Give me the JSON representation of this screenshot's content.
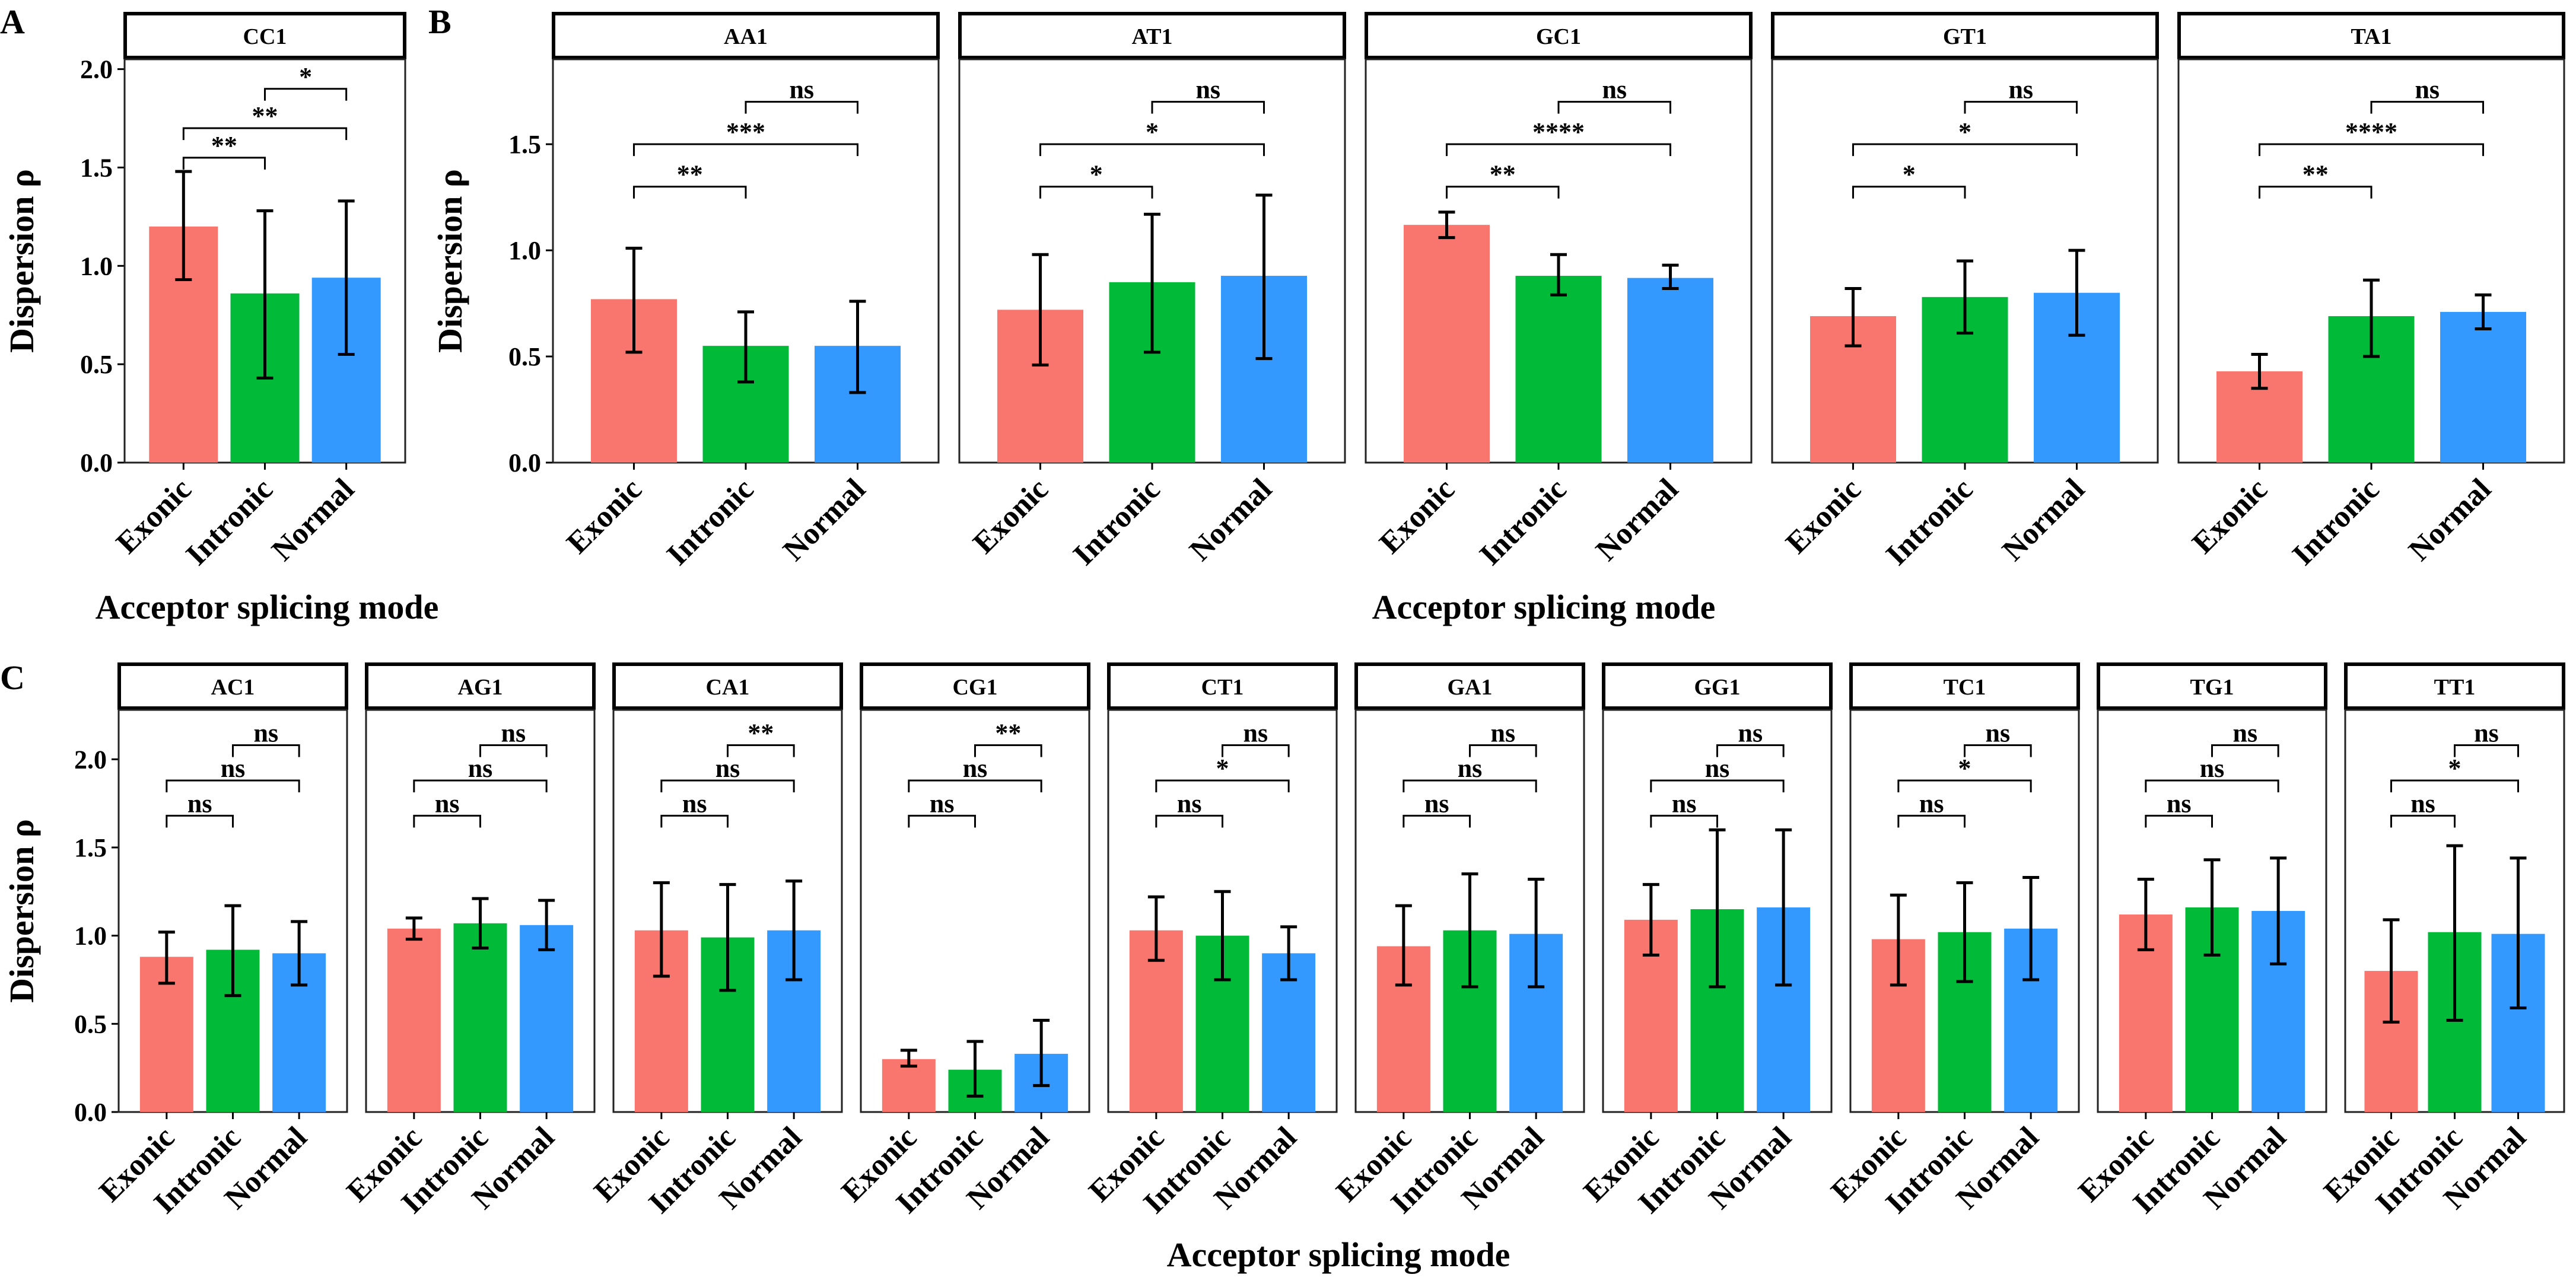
{
  "colors": {
    "Exonic": "#F8766D",
    "Intronic": "#00BA38",
    "Normal": "#3399FF"
  },
  "chart_data": [
    {
      "type": "bar",
      "panel": "A",
      "panel_id": "A",
      "x_title": "Acceptor splicing mode",
      "y_title": "Dispersion ρ",
      "ylim": [
        0,
        2.05
      ],
      "yticks": [
        0.0,
        0.5,
        1.0,
        1.5,
        2.0
      ],
      "ytick_labels": [
        "0.0",
        "0.5",
        "1.0",
        "1.5",
        "2.0"
      ],
      "categories": [
        "Exonic",
        "Intronic",
        "Normal"
      ],
      "facets": [
        {
          "strip": "CC1",
          "values": [
            1.2,
            0.86,
            0.94
          ],
          "err_low": [
            0.93,
            0.43,
            0.55
          ],
          "err_high": [
            1.48,
            1.28,
            1.33
          ],
          "comparisons": [
            {
              "from": 0,
              "to": 1,
              "label": "**",
              "y": 1.55
            },
            {
              "from": 0,
              "to": 2,
              "label": "**",
              "y": 1.7
            },
            {
              "from": 1,
              "to": 2,
              "label": "*",
              "y": 1.9
            }
          ]
        }
      ]
    },
    {
      "type": "bar",
      "panel": "B",
      "panel_id": "B",
      "x_title": "Acceptor splicing mode",
      "y_title": "Dispersion ρ",
      "ylim": [
        0,
        1.9
      ],
      "yticks": [
        0.0,
        0.5,
        1.0,
        1.5
      ],
      "ytick_labels": [
        "0.0",
        "0.5",
        "1.0",
        "1.5"
      ],
      "categories": [
        "Exonic",
        "Intronic",
        "Normal"
      ],
      "facets": [
        {
          "strip": "AA1",
          "values": [
            0.77,
            0.55,
            0.55
          ],
          "err_low": [
            0.52,
            0.38,
            0.33
          ],
          "err_high": [
            1.01,
            0.71,
            0.76
          ],
          "comparisons": [
            {
              "from": 0,
              "to": 1,
              "label": "**",
              "y": 1.3
            },
            {
              "from": 0,
              "to": 2,
              "label": "***",
              "y": 1.5
            },
            {
              "from": 1,
              "to": 2,
              "label": "ns",
              "y": 1.7
            }
          ]
        },
        {
          "strip": "AT1",
          "values": [
            0.72,
            0.85,
            0.88
          ],
          "err_low": [
            0.46,
            0.52,
            0.49
          ],
          "err_high": [
            0.98,
            1.17,
            1.26
          ],
          "comparisons": [
            {
              "from": 0,
              "to": 1,
              "label": "*",
              "y": 1.3
            },
            {
              "from": 0,
              "to": 2,
              "label": "*",
              "y": 1.5
            },
            {
              "from": 1,
              "to": 2,
              "label": "ns",
              "y": 1.7
            }
          ]
        },
        {
          "strip": "GC1",
          "values": [
            1.12,
            0.88,
            0.87
          ],
          "err_low": [
            1.06,
            0.79,
            0.82
          ],
          "err_high": [
            1.18,
            0.98,
            0.93
          ],
          "comparisons": [
            {
              "from": 0,
              "to": 1,
              "label": "**",
              "y": 1.3
            },
            {
              "from": 0,
              "to": 2,
              "label": "****",
              "y": 1.5
            },
            {
              "from": 1,
              "to": 2,
              "label": "ns",
              "y": 1.7
            }
          ]
        },
        {
          "strip": "GT1",
          "values": [
            0.69,
            0.78,
            0.8
          ],
          "err_low": [
            0.55,
            0.61,
            0.6
          ],
          "err_high": [
            0.82,
            0.95,
            1.0
          ],
          "comparisons": [
            {
              "from": 0,
              "to": 1,
              "label": "*",
              "y": 1.3
            },
            {
              "from": 0,
              "to": 2,
              "label": "*",
              "y": 1.5
            },
            {
              "from": 1,
              "to": 2,
              "label": "ns",
              "y": 1.7
            }
          ]
        },
        {
          "strip": "TA1",
          "values": [
            0.43,
            0.69,
            0.71
          ],
          "err_low": [
            0.35,
            0.5,
            0.63
          ],
          "err_high": [
            0.51,
            0.86,
            0.79
          ],
          "comparisons": [
            {
              "from": 0,
              "to": 1,
              "label": "**",
              "y": 1.3
            },
            {
              "from": 0,
              "to": 2,
              "label": "****",
              "y": 1.5
            },
            {
              "from": 1,
              "to": 2,
              "label": "ns",
              "y": 1.7
            }
          ]
        }
      ]
    },
    {
      "type": "bar",
      "panel": "C",
      "panel_id": "C",
      "x_title": "Acceptor splicing mode",
      "y_title": "Dispersion ρ",
      "ylim": [
        0,
        2.28
      ],
      "yticks": [
        0.0,
        0.5,
        1.0,
        1.5,
        2.0
      ],
      "ytick_labels": [
        "0.0",
        "0.5",
        "1.0",
        "1.5",
        "2.0"
      ],
      "categories": [
        "Exonic",
        "Intronic",
        "Normal"
      ],
      "facets": [
        {
          "strip": "AC1",
          "values": [
            0.88,
            0.92,
            0.9
          ],
          "err_low": [
            0.73,
            0.66,
            0.72
          ],
          "err_high": [
            1.02,
            1.17,
            1.08
          ],
          "comparisons": [
            {
              "from": 0,
              "to": 1,
              "label": "ns",
              "y": 1.68
            },
            {
              "from": 0,
              "to": 2,
              "label": "ns",
              "y": 1.88
            },
            {
              "from": 1,
              "to": 2,
              "label": "ns",
              "y": 2.08
            }
          ]
        },
        {
          "strip": "AG1",
          "values": [
            1.04,
            1.07,
            1.06
          ],
          "err_low": [
            0.98,
            0.93,
            0.92
          ],
          "err_high": [
            1.1,
            1.21,
            1.2
          ],
          "comparisons": [
            {
              "from": 0,
              "to": 1,
              "label": "ns",
              "y": 1.68
            },
            {
              "from": 0,
              "to": 2,
              "label": "ns",
              "y": 1.88
            },
            {
              "from": 1,
              "to": 2,
              "label": "ns",
              "y": 2.08
            }
          ]
        },
        {
          "strip": "CA1",
          "values": [
            1.03,
            0.99,
            1.03
          ],
          "err_low": [
            0.77,
            0.69,
            0.75
          ],
          "err_high": [
            1.3,
            1.29,
            1.31
          ],
          "comparisons": [
            {
              "from": 0,
              "to": 1,
              "label": "ns",
              "y": 1.68
            },
            {
              "from": 0,
              "to": 2,
              "label": "ns",
              "y": 1.88
            },
            {
              "from": 1,
              "to": 2,
              "label": "**",
              "y": 2.08
            }
          ]
        },
        {
          "strip": "CG1",
          "values": [
            0.3,
            0.24,
            0.33
          ],
          "err_low": [
            0.26,
            0.09,
            0.15
          ],
          "err_high": [
            0.35,
            0.4,
            0.52
          ],
          "comparisons": [
            {
              "from": 0,
              "to": 1,
              "label": "ns",
              "y": 1.68
            },
            {
              "from": 0,
              "to": 2,
              "label": "ns",
              "y": 1.88
            },
            {
              "from": 1,
              "to": 2,
              "label": "**",
              "y": 2.08
            }
          ]
        },
        {
          "strip": "CT1",
          "values": [
            1.03,
            1.0,
            0.9
          ],
          "err_low": [
            0.86,
            0.75,
            0.75
          ],
          "err_high": [
            1.22,
            1.25,
            1.05
          ],
          "comparisons": [
            {
              "from": 0,
              "to": 1,
              "label": "ns",
              "y": 1.68
            },
            {
              "from": 0,
              "to": 2,
              "label": "*",
              "y": 1.88
            },
            {
              "from": 1,
              "to": 2,
              "label": "ns",
              "y": 2.08
            }
          ]
        },
        {
          "strip": "GA1",
          "values": [
            0.94,
            1.03,
            1.01
          ],
          "err_low": [
            0.72,
            0.71,
            0.71
          ],
          "err_high": [
            1.17,
            1.35,
            1.32
          ],
          "comparisons": [
            {
              "from": 0,
              "to": 1,
              "label": "ns",
              "y": 1.68
            },
            {
              "from": 0,
              "to": 2,
              "label": "ns",
              "y": 1.88
            },
            {
              "from": 1,
              "to": 2,
              "label": "ns",
              "y": 2.08
            }
          ]
        },
        {
          "strip": "GG1",
          "values": [
            1.09,
            1.15,
            1.16
          ],
          "err_low": [
            0.89,
            0.71,
            0.72
          ],
          "err_high": [
            1.29,
            1.6,
            1.6
          ],
          "comparisons": [
            {
              "from": 0,
              "to": 1,
              "label": "ns",
              "y": 1.68
            },
            {
              "from": 0,
              "to": 2,
              "label": "ns",
              "y": 1.88
            },
            {
              "from": 1,
              "to": 2,
              "label": "ns",
              "y": 2.08
            }
          ]
        },
        {
          "strip": "TC1",
          "values": [
            0.98,
            1.02,
            1.04
          ],
          "err_low": [
            0.72,
            0.74,
            0.75
          ],
          "err_high": [
            1.23,
            1.3,
            1.33
          ],
          "comparisons": [
            {
              "from": 0,
              "to": 1,
              "label": "ns",
              "y": 1.68
            },
            {
              "from": 0,
              "to": 2,
              "label": "*",
              "y": 1.88
            },
            {
              "from": 1,
              "to": 2,
              "label": "ns",
              "y": 2.08
            }
          ]
        },
        {
          "strip": "TG1",
          "values": [
            1.12,
            1.16,
            1.14
          ],
          "err_low": [
            0.92,
            0.89,
            0.84
          ],
          "err_high": [
            1.32,
            1.43,
            1.44
          ],
          "comparisons": [
            {
              "from": 0,
              "to": 1,
              "label": "ns",
              "y": 1.68
            },
            {
              "from": 0,
              "to": 2,
              "label": "ns",
              "y": 1.88
            },
            {
              "from": 1,
              "to": 2,
              "label": "ns",
              "y": 2.08
            }
          ]
        },
        {
          "strip": "TT1",
          "values": [
            0.8,
            1.02,
            1.01
          ],
          "err_low": [
            0.51,
            0.52,
            0.59
          ],
          "err_high": [
            1.09,
            1.51,
            1.44
          ],
          "comparisons": [
            {
              "from": 0,
              "to": 1,
              "label": "ns",
              "y": 1.68
            },
            {
              "from": 0,
              "to": 2,
              "label": "*",
              "y": 1.88
            },
            {
              "from": 1,
              "to": 2,
              "label": "ns",
              "y": 2.08
            }
          ]
        }
      ]
    }
  ]
}
